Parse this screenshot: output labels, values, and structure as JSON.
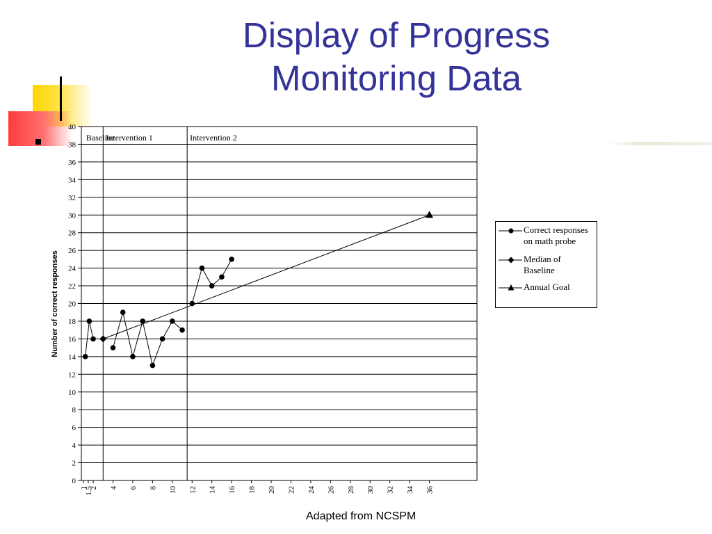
{
  "slide": {
    "title_line1": "Display of Progress",
    "title_line2": "Monitoring Data",
    "footnote": "Adapted from NCSPM"
  },
  "colors": {
    "title": "#333399",
    "accent_yellow": "#ffd400",
    "accent_red": "#ff4040"
  },
  "chart_data": {
    "type": "line",
    "ylabel": "Number of correct responses",
    "xlabel": "",
    "ylim": [
      0,
      40
    ],
    "y_ticks": [
      0,
      2,
      4,
      6,
      8,
      10,
      12,
      14,
      16,
      18,
      20,
      22,
      24,
      26,
      28,
      30,
      32,
      34,
      36,
      38,
      40
    ],
    "x_tick_labels": [
      "1",
      "1.5",
      "2",
      "4",
      "6",
      "8",
      "10",
      "12",
      "14",
      "16",
      "18",
      "20",
      "22",
      "24",
      "26",
      "28",
      "30",
      "32",
      "34",
      "36"
    ],
    "grid": "horizontal",
    "phases": [
      {
        "label": "Baseline",
        "start_week": 1,
        "end_week": 3
      },
      {
        "label": "Intervention 1",
        "start_week": 3,
        "end_week": 11.5
      },
      {
        "label": "Intervention 2",
        "start_week": 11.5,
        "end_week": 37
      }
    ],
    "series": [
      {
        "name": "Correct responses on math probe",
        "marker": "circle",
        "connected_segments": [
          [
            {
              "x": 1.2,
              "y": 14
            },
            {
              "x": 1.6,
              "y": 18
            },
            {
              "x": 2.0,
              "y": 16
            }
          ],
          [
            {
              "x": 4,
              "y": 15
            },
            {
              "x": 5,
              "y": 19
            },
            {
              "x": 6,
              "y": 14
            },
            {
              "x": 7,
              "y": 18
            },
            {
              "x": 8,
              "y": 13
            },
            {
              "x": 9,
              "y": 16
            },
            {
              "x": 10,
              "y": 18
            },
            {
              "x": 11,
              "y": 17
            }
          ],
          [
            {
              "x": 12,
              "y": 20
            },
            {
              "x": 13,
              "y": 24
            },
            {
              "x": 14,
              "y": 22
            },
            {
              "x": 15,
              "y": 23
            },
            {
              "x": 16,
              "y": 25
            }
          ]
        ]
      },
      {
        "name": "Median of Baseline",
        "marker": "diamond",
        "points": [
          {
            "x": 3,
            "y": 16
          }
        ]
      },
      {
        "name": "Annual Goal",
        "marker": "triangle",
        "points": [
          {
            "x": 36,
            "y": 30
          }
        ]
      }
    ],
    "aimline": {
      "from": {
        "x": 3,
        "y": 16
      },
      "to": {
        "x": 36,
        "y": 30
      }
    },
    "legend": {
      "position": "right",
      "entries": [
        {
          "label_line1": "Correct responses",
          "label_line2": "on math probe",
          "marker": "circle"
        },
        {
          "label_line1": "Median of",
          "label_line2": "Baseline",
          "marker": "diamond"
        },
        {
          "label_line1": "Annual Goal",
          "label_line2": "",
          "marker": "triangle"
        }
      ]
    }
  }
}
